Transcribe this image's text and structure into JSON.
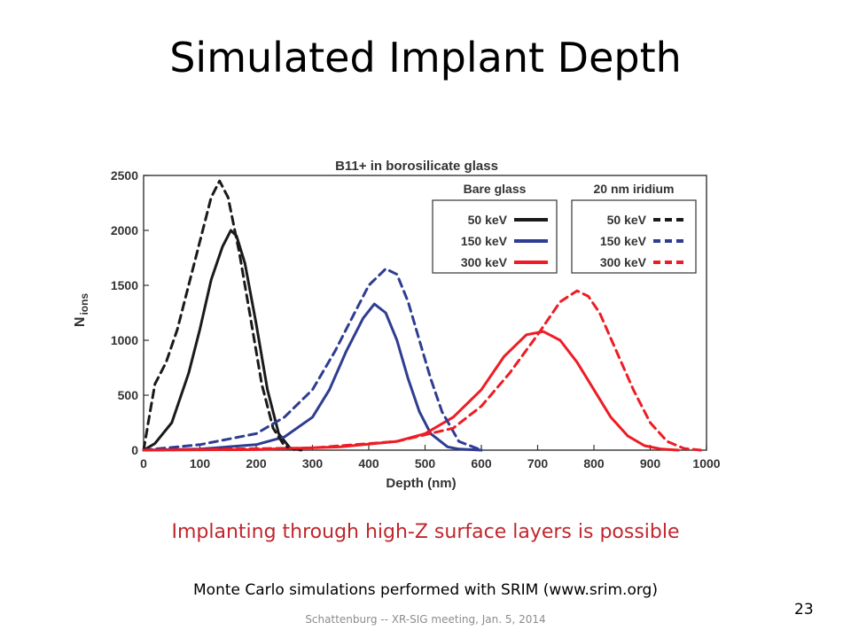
{
  "slide": {
    "title": "Simulated Implant Depth",
    "tagline": "Implanting through high-Z surface layers is possible",
    "credit": "Monte Carlo simulations performed with SRIM (www.srim.org)",
    "footer": "Schattenburg -- XR-SIG meeting, Jan. 5, 2014",
    "page_number": "23"
  },
  "chart_data": {
    "type": "line",
    "title": "B11+ in borosilicate glass",
    "xlabel": "Depth (nm)",
    "ylabel_main": "N",
    "ylabel_sub": "ions",
    "xlim": [
      0,
      1000
    ],
    "ylim": [
      0,
      2500
    ],
    "xticks": [
      0,
      100,
      200,
      300,
      400,
      500,
      600,
      700,
      800,
      900,
      1000
    ],
    "yticks": [
      0,
      500,
      1000,
      1500,
      2000,
      2500
    ],
    "grid": false,
    "legend": {
      "placement": "top-right",
      "groups": [
        {
          "title": "Bare glass",
          "entries": [
            "50 keV",
            "150 keV",
            "300 keV"
          ],
          "style": "solid"
        },
        {
          "title": "20 nm iridium",
          "entries": [
            "50 keV",
            "150 keV",
            "300 keV"
          ],
          "style": "dashed"
        }
      ]
    },
    "series": [
      {
        "group": "Bare glass",
        "energy": "50 keV",
        "style": "solid",
        "color": "#1a1a1a",
        "x": [
          0,
          20,
          50,
          80,
          100,
          120,
          140,
          155,
          165,
          180,
          200,
          220,
          240,
          260,
          280
        ],
        "y": [
          0,
          60,
          250,
          700,
          1100,
          1550,
          1850,
          2000,
          1950,
          1700,
          1150,
          550,
          150,
          20,
          0
        ]
      },
      {
        "group": "Bare glass",
        "energy": "150 keV",
        "style": "solid",
        "color": "#2e3d91",
        "x": [
          0,
          100,
          200,
          250,
          300,
          330,
          360,
          390,
          410,
          430,
          450,
          470,
          490,
          510,
          540,
          560,
          600
        ],
        "y": [
          0,
          10,
          50,
          120,
          300,
          550,
          900,
          1200,
          1330,
          1250,
          1000,
          650,
          350,
          150,
          30,
          10,
          0
        ]
      },
      {
        "group": "Bare glass",
        "energy": "300 keV",
        "style": "solid",
        "color": "#ee1c24",
        "x": [
          0,
          200,
          350,
          450,
          500,
          550,
          600,
          640,
          680,
          710,
          740,
          770,
          800,
          830,
          860,
          890,
          920,
          950
        ],
        "y": [
          0,
          5,
          30,
          80,
          150,
          300,
          550,
          850,
          1050,
          1080,
          1000,
          800,
          550,
          300,
          130,
          40,
          10,
          0
        ]
      },
      {
        "group": "20 nm iridium",
        "energy": "50 keV",
        "style": "dashed",
        "color": "#1a1a1a",
        "x": [
          0,
          10,
          20,
          40,
          60,
          80,
          100,
          120,
          135,
          150,
          170,
          190,
          210,
          230,
          250,
          270
        ],
        "y": [
          0,
          300,
          600,
          800,
          1100,
          1500,
          1900,
          2300,
          2450,
          2300,
          1800,
          1200,
          600,
          200,
          40,
          0
        ]
      },
      {
        "group": "20 nm iridium",
        "energy": "150 keV",
        "style": "dashed",
        "color": "#2e3d91",
        "x": [
          0,
          100,
          200,
          250,
          300,
          340,
          370,
          400,
          430,
          450,
          470,
          490,
          510,
          530,
          560,
          600
        ],
        "y": [
          0,
          50,
          150,
          300,
          550,
          900,
          1200,
          1500,
          1650,
          1600,
          1350,
          1000,
          650,
          350,
          80,
          0
        ]
      },
      {
        "group": "20 nm iridium",
        "energy": "300 keV",
        "style": "dashed",
        "color": "#ee1c24",
        "x": [
          0,
          300,
          450,
          550,
          600,
          650,
          700,
          740,
          770,
          790,
          810,
          840,
          870,
          900,
          930,
          960,
          990
        ],
        "y": [
          0,
          20,
          80,
          200,
          400,
          700,
          1050,
          1350,
          1450,
          1400,
          1250,
          900,
          550,
          250,
          80,
          15,
          0
        ]
      }
    ]
  }
}
